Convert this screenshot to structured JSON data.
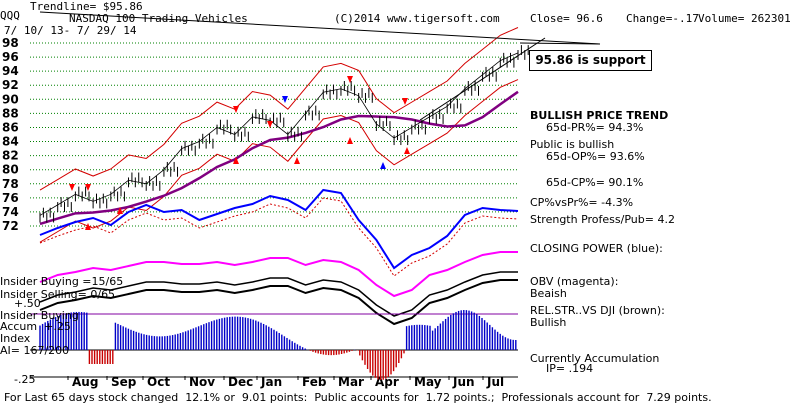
{
  "header": {
    "symbol": "QQQ",
    "trendline": "Trendline= $95.86",
    "title": "NASDAQ 100 Trading Vehicles",
    "copyright": "(C)2014 www.tigersoft.com",
    "close": "Close= 96.6",
    "change": "Change=-.17",
    "volume": "Volume= 262301",
    "daterange": "7/ 10/ 13- 7/ 29/ 14"
  },
  "annotations": {
    "support": "95.86 is support",
    "bullish_trend": "BULLISH PRICE TREND",
    "pr_pct": "65d-PR%= 94.3%",
    "public_bullish": "Public is bullish",
    "op_pct": "65d-OP%= 93.6%",
    "cp_pct": "65d-CP%= 90.1%",
    "cpvspr": "CP%vsPr%= -4.3%",
    "strength": "Strength Profess/Pub= 4.2",
    "closing_power": "CLOSING POWER (blue):",
    "obv": "OBV (magenta):",
    "obv_state": "Beaish",
    "relstr": "REL.STR..VS DJI (brown):",
    "relstr_state": "Bullish",
    "accum_state": "Currently Accumulation",
    "ip": "IP= .194",
    "insider_buying": "Insider Buying =15/65",
    "insider_selling": "Insider Selling= 0/65",
    "plus50": "+.50",
    "insider_buying2": "Insider Buying",
    "accum": "Accum  +.25",
    "index": "Index",
    "ai": "AI= 167/200",
    "minus25": "-.25",
    "footer": "For Last 65 days stock changed  12.1% or  9.01 points:  Public accounts for  1.72 points.;  Professionals account for  7.29 points."
  },
  "colors": {
    "price": "#000000",
    "band": "#d40000",
    "ma": "#800080",
    "closing_power": "#0000ff",
    "obv": "#ff00ff",
    "relstr": "#c00000",
    "accum_pos": "#0000c8",
    "accum_neg": "#c80000",
    "grid": "#008000"
  },
  "chart_data": {
    "type": "line",
    "title": "NASDAQ 100 Trading Vehicles",
    "ylim": [
      72,
      98
    ],
    "y_ticks": [
      "98",
      "96",
      "94",
      "92",
      "90",
      "88",
      "86",
      "84",
      "82",
      "80",
      "78",
      "76",
      "74",
      "72"
    ],
    "months": [
      "Aug",
      "Sep",
      "Oct",
      "Nov",
      "Dec",
      "Jan",
      "Feb",
      "Mar",
      "Apr",
      "May",
      "Jun",
      "Jul"
    ],
    "price_series": {
      "dates": [
        "2013-07-10",
        "2013-07-24",
        "2013-08-07",
        "2013-08-21",
        "2013-09-04",
        "2013-09-18",
        "2013-10-02",
        "2013-10-16",
        "2013-10-30",
        "2013-11-13",
        "2013-11-27",
        "2013-12-11",
        "2013-12-25",
        "2014-01-08",
        "2014-01-22",
        "2014-02-05",
        "2014-02-19",
        "2014-03-05",
        "2014-03-19",
        "2014-04-02",
        "2014-04-16",
        "2014-04-30",
        "2014-05-14",
        "2014-05-28",
        "2014-06-11",
        "2014-06-25",
        "2014-07-09",
        "2014-07-29"
      ],
      "close": [
        73.5,
        75.0,
        76.5,
        75.5,
        76.5,
        78.5,
        78.0,
        80.0,
        83.0,
        84.0,
        86.0,
        85.0,
        87.5,
        87.0,
        85.0,
        88.0,
        91.0,
        91.5,
        90.5,
        86.5,
        84.5,
        86.0,
        87.5,
        89.0,
        91.5,
        93.5,
        95.5,
        96.6
      ]
    },
    "trendline_value": 95.86
  }
}
